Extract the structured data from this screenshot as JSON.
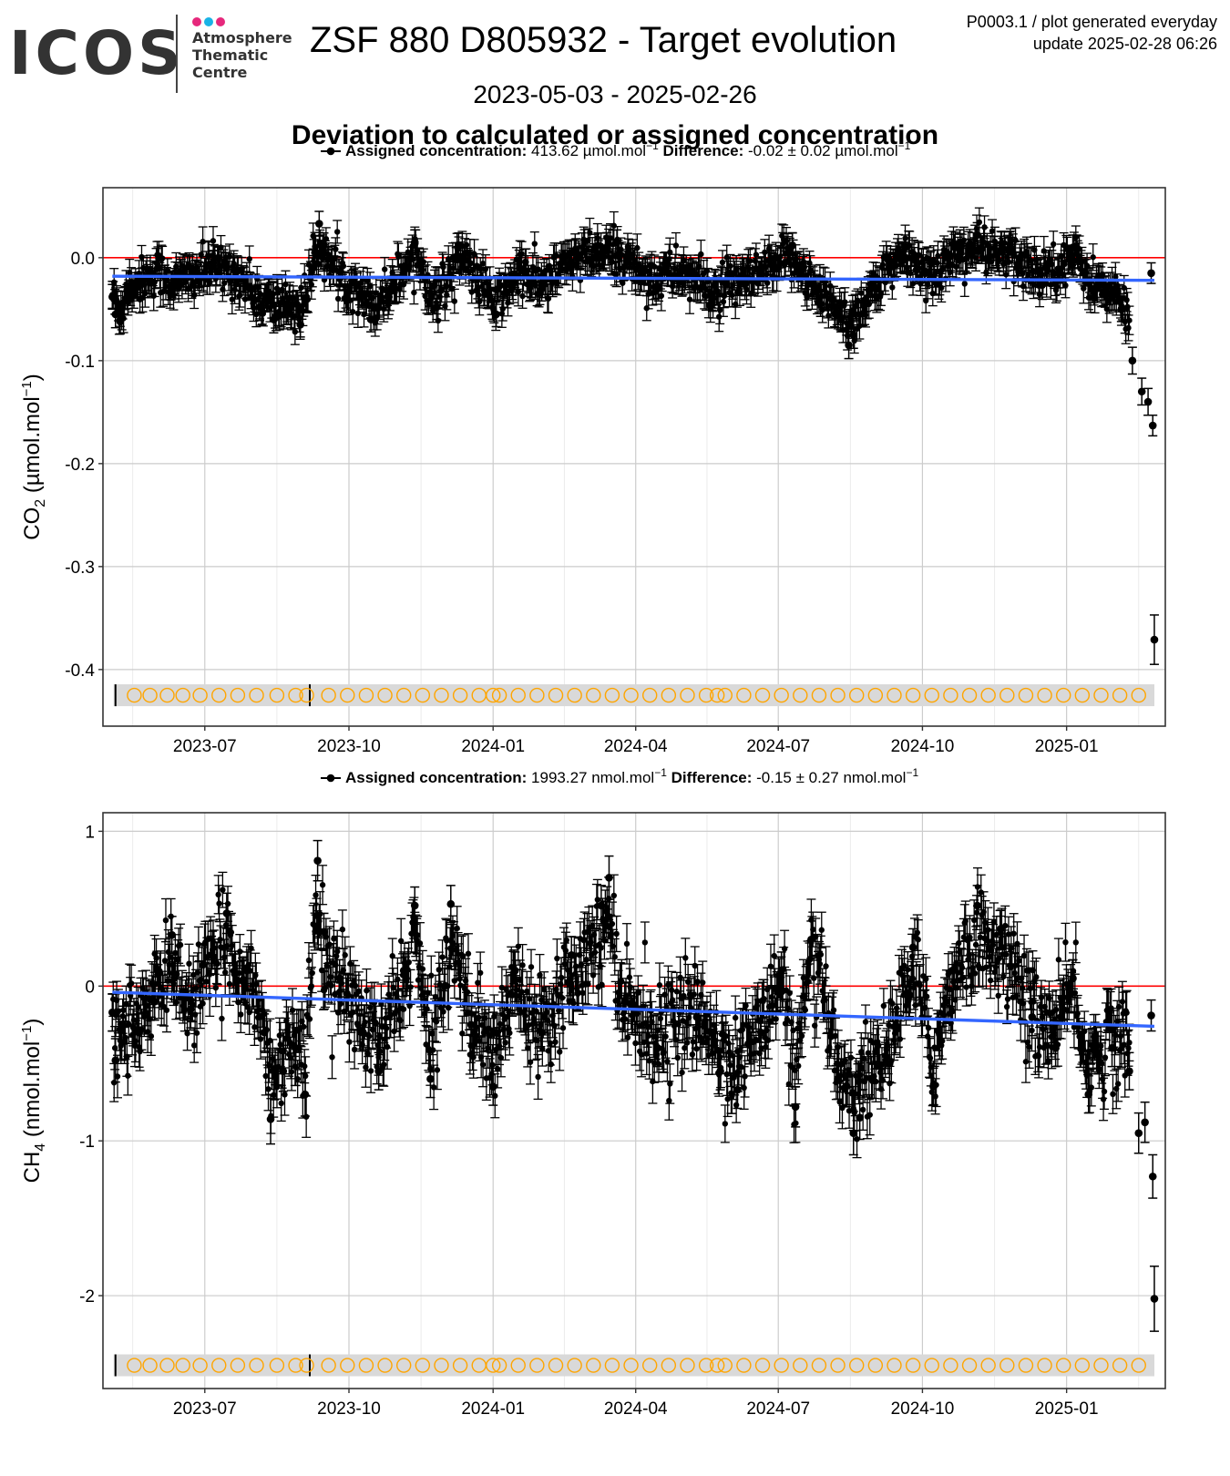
{
  "header": {
    "logo_text": "ICOS",
    "logo_subtitle": [
      "Atmosphere",
      "Thematic",
      "Centre"
    ],
    "logo_dot_colors": [
      "#e6287c",
      "#1ab3e6",
      "#e6287c"
    ],
    "title": "ZSF 880 D805932 - Target evolution",
    "meta_line1": "P0003.1 / plot generated everyday",
    "meta_line2": "update  2025-02-28 06:26",
    "date_range": "2023-05-03 - 2025-02-26",
    "section_title": "Deviation to calculated or assigned concentration"
  },
  "colors": {
    "points": "#000000",
    "zero_line": "#ff0000",
    "trend_line": "#3366ff",
    "marker_circles": "#ffa500",
    "marker_band": "#d9d9d9",
    "panel_border": "#333333",
    "grid_major": "#cccccc",
    "grid_minor": "#ebebeb"
  },
  "chart_data": [
    {
      "type": "scatter",
      "gas": "CO2",
      "legend": {
        "assigned_label": "Assigned concentration:",
        "assigned_value": "413.62 µmol.mol",
        "difference_label": "Difference:",
        "difference_value": "-0.02 ± 0.02 µmol.mol",
        "unit_exponent": "−1"
      },
      "ylabel_main": "CO",
      "ylabel_sub": "2",
      "ylabel_unit": " (µmol.mol",
      "ylabel_exp": "−1",
      "ylabel_close": ")",
      "xlim": [
        "2023-04-27",
        "2025-03-05"
      ],
      "ylim": [
        -0.455,
        0.068
      ],
      "yticks": [
        0.0,
        -0.1,
        -0.2,
        -0.3,
        -0.4
      ],
      "ytick_labels": [
        "0.0",
        "-0.1",
        "-0.2",
        "-0.3",
        "-0.4"
      ],
      "xticks": [
        "2023-07-01",
        "2023-10-01",
        "2024-01-01",
        "2024-04-01",
        "2024-07-01",
        "2024-10-01",
        "2025-01-01"
      ],
      "xtick_labels": [
        "2023-07",
        "2023-10",
        "2024-01",
        "2024-04",
        "2024-07",
        "2024-10",
        "2025-01"
      ],
      "reference_y": 0,
      "trend": {
        "x": [
          "2023-05-03",
          "2025-02-26"
        ],
        "y": [
          -0.018,
          -0.022
        ]
      },
      "marker_band_y": -0.425,
      "points": [
        {
          "x": "2023-05-03",
          "y": -0.038,
          "err": 0.012
        },
        {
          "x": "2023-05-05",
          "y": -0.055,
          "err": 0.013
        },
        {
          "x": "2023-05-08",
          "y": -0.062,
          "err": 0.012
        },
        {
          "x": "2023-05-14",
          "y": -0.03,
          "err": 0.012
        },
        {
          "x": "2023-05-22",
          "y": -0.022,
          "err": 0.012
        },
        {
          "x": "2023-06-01",
          "y": -0.01,
          "err": 0.012
        },
        {
          "x": "2023-06-12",
          "y": -0.028,
          "err": 0.012
        },
        {
          "x": "2023-06-25",
          "y": -0.015,
          "err": 0.012
        },
        {
          "x": "2023-07-06",
          "y": -0.005,
          "err": 0.012
        },
        {
          "x": "2023-07-20",
          "y": -0.012,
          "err": 0.012
        },
        {
          "x": "2023-08-05",
          "y": -0.048,
          "err": 0.013
        },
        {
          "x": "2023-08-14",
          "y": -0.06,
          "err": 0.013
        },
        {
          "x": "2023-08-22",
          "y": -0.052,
          "err": 0.013
        },
        {
          "x": "2023-08-31",
          "y": -0.065,
          "err": 0.012
        },
        {
          "x": "2023-09-08",
          "y": -0.01,
          "err": 0.012
        },
        {
          "x": "2023-09-12",
          "y": 0.033,
          "err": 0.012
        },
        {
          "x": "2023-09-15",
          "y": 0.012,
          "err": 0.012
        },
        {
          "x": "2023-09-25",
          "y": -0.02,
          "err": 0.012
        },
        {
          "x": "2023-10-10",
          "y": -0.035,
          "err": 0.012
        },
        {
          "x": "2023-10-15",
          "y": -0.06,
          "err": 0.012
        },
        {
          "x": "2023-10-28",
          "y": -0.03,
          "err": 0.012
        },
        {
          "x": "2023-11-12",
          "y": 0.015,
          "err": 0.012
        },
        {
          "x": "2023-11-26",
          "y": -0.048,
          "err": 0.012
        },
        {
          "x": "2023-12-10",
          "y": 0.012,
          "err": 0.012
        },
        {
          "x": "2023-12-22",
          "y": -0.02,
          "err": 0.012
        },
        {
          "x": "2024-01-03",
          "y": -0.055,
          "err": 0.012
        },
        {
          "x": "2024-01-18",
          "y": -0.01,
          "err": 0.012
        },
        {
          "x": "2024-02-01",
          "y": -0.03,
          "err": 0.012
        },
        {
          "x": "2024-02-20",
          "y": 0.005,
          "err": 0.012
        },
        {
          "x": "2024-03-08",
          "y": 0.012,
          "err": 0.012
        },
        {
          "x": "2024-03-20",
          "y": 0.015,
          "err": 0.012
        },
        {
          "x": "2024-04-10",
          "y": -0.02,
          "err": 0.012
        },
        {
          "x": "2024-05-01",
          "y": -0.01,
          "err": 0.012
        },
        {
          "x": "2024-05-20",
          "y": -0.04,
          "err": 0.012
        },
        {
          "x": "2024-06-10",
          "y": -0.025,
          "err": 0.012
        },
        {
          "x": "2024-06-28",
          "y": -0.008,
          "err": 0.012
        },
        {
          "x": "2024-07-10",
          "y": 0.012,
          "err": 0.012
        },
        {
          "x": "2024-07-28",
          "y": -0.045,
          "err": 0.012
        },
        {
          "x": "2024-08-10",
          "y": -0.06,
          "err": 0.012
        },
        {
          "x": "2024-08-15",
          "y": -0.085,
          "err": 0.013
        },
        {
          "x": "2024-08-18",
          "y": -0.075,
          "err": 0.013
        },
        {
          "x": "2024-09-01",
          "y": -0.03,
          "err": 0.012
        },
        {
          "x": "2024-09-20",
          "y": 0.01,
          "err": 0.012
        },
        {
          "x": "2024-10-05",
          "y": -0.015,
          "err": 0.012
        },
        {
          "x": "2024-10-25",
          "y": 0.015,
          "err": 0.012
        },
        {
          "x": "2024-11-05",
          "y": 0.022,
          "err": 0.012
        },
        {
          "x": "2024-11-25",
          "y": 0.008,
          "err": 0.012
        },
        {
          "x": "2024-12-15",
          "y": -0.012,
          "err": 0.012
        },
        {
          "x": "2025-01-05",
          "y": 0.01,
          "err": 0.012
        },
        {
          "x": "2025-01-20",
          "y": -0.03,
          "err": 0.012
        },
        {
          "x": "2025-02-05",
          "y": -0.05,
          "err": 0.012
        },
        {
          "x": "2025-02-12",
          "y": -0.1,
          "err": 0.013
        },
        {
          "x": "2025-02-18",
          "y": -0.13,
          "err": 0.013
        },
        {
          "x": "2025-02-22",
          "y": -0.14,
          "err": 0.013
        },
        {
          "x": "2025-02-24",
          "y": -0.015,
          "err": 0.01
        },
        {
          "x": "2025-02-25",
          "y": -0.163,
          "err": 0.01
        },
        {
          "x": "2025-02-26",
          "y": -0.371,
          "err": 0.024
        }
      ],
      "markers": [
        "2023-05-17",
        "2023-05-27",
        "2023-06-07",
        "2023-06-17",
        "2023-06-28",
        "2023-07-10",
        "2023-07-22",
        "2023-08-03",
        "2023-08-16",
        "2023-08-28",
        "2023-09-04",
        "2023-09-18",
        "2023-09-30",
        "2023-10-12",
        "2023-10-24",
        "2023-11-05",
        "2023-11-17",
        "2023-11-29",
        "2023-12-11",
        "2023-12-23",
        "2024-01-01",
        "2024-01-05",
        "2024-01-17",
        "2024-01-29",
        "2024-02-10",
        "2024-02-22",
        "2024-03-05",
        "2024-03-17",
        "2024-03-29",
        "2024-04-10",
        "2024-04-22",
        "2024-05-04",
        "2024-05-16",
        "2024-05-23",
        "2024-05-28",
        "2024-06-09",
        "2024-06-21",
        "2024-07-03",
        "2024-07-15",
        "2024-07-27",
        "2024-08-08",
        "2024-08-20",
        "2024-09-01",
        "2024-09-13",
        "2024-09-25",
        "2024-10-07",
        "2024-10-19",
        "2024-10-31",
        "2024-11-12",
        "2024-11-24",
        "2024-12-06",
        "2024-12-18",
        "2024-12-30",
        "2025-01-11",
        "2025-01-23",
        "2025-02-04",
        "2025-02-16"
      ],
      "event_marks": [
        "2023-05-05",
        "2023-09-06"
      ]
    },
    {
      "type": "scatter",
      "gas": "CH4",
      "legend": {
        "assigned_label": "Assigned concentration:",
        "assigned_value": "1993.27 nmol.mol",
        "difference_label": "Difference:",
        "difference_value": "-0.15 ± 0.27 nmol.mol",
        "unit_exponent": "−1"
      },
      "ylabel_main": "CH",
      "ylabel_sub": "4",
      "ylabel_unit": " (nmol.mol",
      "ylabel_exp": "−1",
      "ylabel_close": ")",
      "xlim": [
        "2023-04-27",
        "2025-03-05"
      ],
      "ylim": [
        -2.6,
        1.12
      ],
      "yticks": [
        1,
        0,
        -1,
        -2
      ],
      "ytick_labels": [
        "1",
        "0",
        "-1",
        "-2"
      ],
      "xticks": [
        "2023-07-01",
        "2023-10-01",
        "2024-01-01",
        "2024-04-01",
        "2024-07-01",
        "2024-10-01",
        "2025-01-01"
      ],
      "xtick_labels": [
        "2023-07",
        "2023-10",
        "2024-01",
        "2024-04",
        "2024-07",
        "2024-10",
        "2025-01"
      ],
      "reference_y": 0,
      "trend": {
        "x": [
          "2023-05-03",
          "2025-02-26"
        ],
        "y": [
          -0.04,
          -0.26
        ]
      },
      "marker_band_y": -2.45,
      "points": [
        {
          "x": "2023-05-03",
          "y": -0.17,
          "err": 0.12
        },
        {
          "x": "2023-05-05",
          "y": -0.48,
          "err": 0.14
        },
        {
          "x": "2023-05-10",
          "y": -0.25,
          "err": 0.12
        },
        {
          "x": "2023-05-20",
          "y": -0.3,
          "err": 0.12
        },
        {
          "x": "2023-05-30",
          "y": -0.1,
          "err": 0.12
        },
        {
          "x": "2023-06-10",
          "y": 0.33,
          "err": 0.12
        },
        {
          "x": "2023-06-22",
          "y": -0.15,
          "err": 0.12
        },
        {
          "x": "2023-07-05",
          "y": 0.2,
          "err": 0.12
        },
        {
          "x": "2023-07-15",
          "y": 0.47,
          "err": 0.13
        },
        {
          "x": "2023-07-28",
          "y": 0.1,
          "err": 0.12
        },
        {
          "x": "2023-08-08",
          "y": -0.3,
          "err": 0.12
        },
        {
          "x": "2023-08-12",
          "y": -0.86,
          "err": 0.16
        },
        {
          "x": "2023-08-20",
          "y": -0.55,
          "err": 0.13
        },
        {
          "x": "2023-08-28",
          "y": -0.4,
          "err": 0.13
        },
        {
          "x": "2023-09-03",
          "y": -0.7,
          "err": 0.14
        },
        {
          "x": "2023-09-11",
          "y": 0.81,
          "err": 0.13
        },
        {
          "x": "2023-09-15",
          "y": 0.35,
          "err": 0.12
        },
        {
          "x": "2023-09-25",
          "y": 0.05,
          "err": 0.12
        },
        {
          "x": "2023-10-10",
          "y": -0.3,
          "err": 0.12
        },
        {
          "x": "2023-10-20",
          "y": -0.55,
          "err": 0.12
        },
        {
          "x": "2023-11-05",
          "y": 0.1,
          "err": 0.12
        },
        {
          "x": "2023-11-12",
          "y": 0.52,
          "err": 0.12
        },
        {
          "x": "2023-11-22",
          "y": -0.6,
          "err": 0.12
        },
        {
          "x": "2023-12-05",
          "y": 0.53,
          "err": 0.12
        },
        {
          "x": "2023-12-18",
          "y": -0.25,
          "err": 0.12
        },
        {
          "x": "2024-01-01",
          "y": -0.65,
          "err": 0.12
        },
        {
          "x": "2024-01-15",
          "y": 0.1,
          "err": 0.12
        },
        {
          "x": "2024-02-01",
          "y": -0.3,
          "err": 0.12
        },
        {
          "x": "2024-02-20",
          "y": 0.2,
          "err": 0.12
        },
        {
          "x": "2024-03-10",
          "y": 0.52,
          "err": 0.13
        },
        {
          "x": "2024-03-15",
          "y": 0.7,
          "err": 0.14
        },
        {
          "x": "2024-03-25",
          "y": -0.1,
          "err": 0.12
        },
        {
          "x": "2024-04-15",
          "y": -0.4,
          "err": 0.12
        },
        {
          "x": "2024-05-10",
          "y": -0.2,
          "err": 0.12
        },
        {
          "x": "2024-05-25",
          "y": -0.55,
          "err": 0.12
        },
        {
          "x": "2024-06-05",
          "y": -0.67,
          "err": 0.12
        },
        {
          "x": "2024-06-20",
          "y": -0.3,
          "err": 0.12
        },
        {
          "x": "2024-07-03",
          "y": 0.1,
          "err": 0.12
        },
        {
          "x": "2024-07-12",
          "y": -0.78,
          "err": 0.13
        },
        {
          "x": "2024-07-22",
          "y": 0.3,
          "err": 0.12
        },
        {
          "x": "2024-08-08",
          "y": -0.6,
          "err": 0.13
        },
        {
          "x": "2024-08-18",
          "y": -0.95,
          "err": 0.14
        },
        {
          "x": "2024-08-22",
          "y": -0.85,
          "err": 0.14
        },
        {
          "x": "2024-09-10",
          "y": -0.5,
          "err": 0.12
        },
        {
          "x": "2024-09-25",
          "y": 0.25,
          "err": 0.12
        },
        {
          "x": "2024-10-08",
          "y": -0.65,
          "err": 0.12
        },
        {
          "x": "2024-10-20",
          "y": 0.1,
          "err": 0.12
        },
        {
          "x": "2024-11-05",
          "y": 0.52,
          "err": 0.13
        },
        {
          "x": "2024-11-20",
          "y": 0.37,
          "err": 0.12
        },
        {
          "x": "2024-12-10",
          "y": -0.2,
          "err": 0.12
        },
        {
          "x": "2024-12-25",
          "y": -0.4,
          "err": 0.12
        },
        {
          "x": "2025-01-05",
          "y": 0.05,
          "err": 0.12
        },
        {
          "x": "2025-01-15",
          "y": -0.7,
          "err": 0.12
        },
        {
          "x": "2025-01-30",
          "y": -0.4,
          "err": 0.12
        },
        {
          "x": "2025-02-10",
          "y": -0.55,
          "err": 0.12
        },
        {
          "x": "2025-02-16",
          "y": -0.95,
          "err": 0.13
        },
        {
          "x": "2025-02-20",
          "y": -0.88,
          "err": 0.13
        },
        {
          "x": "2025-02-24",
          "y": -0.19,
          "err": 0.1
        },
        {
          "x": "2025-02-25",
          "y": -1.23,
          "err": 0.14
        },
        {
          "x": "2025-02-26",
          "y": -2.02,
          "err": 0.21
        }
      ],
      "markers": [
        "2023-05-17",
        "2023-05-27",
        "2023-06-07",
        "2023-06-17",
        "2023-06-28",
        "2023-07-10",
        "2023-07-22",
        "2023-08-03",
        "2023-08-16",
        "2023-08-28",
        "2023-09-04",
        "2023-09-18",
        "2023-09-30",
        "2023-10-12",
        "2023-10-24",
        "2023-11-05",
        "2023-11-17",
        "2023-11-29",
        "2023-12-11",
        "2023-12-23",
        "2024-01-01",
        "2024-01-05",
        "2024-01-17",
        "2024-01-29",
        "2024-02-10",
        "2024-02-22",
        "2024-03-05",
        "2024-03-17",
        "2024-03-29",
        "2024-04-10",
        "2024-04-22",
        "2024-05-04",
        "2024-05-16",
        "2024-05-23",
        "2024-05-28",
        "2024-06-09",
        "2024-06-21",
        "2024-07-03",
        "2024-07-15",
        "2024-07-27",
        "2024-08-08",
        "2024-08-20",
        "2024-09-01",
        "2024-09-13",
        "2024-09-25",
        "2024-10-07",
        "2024-10-19",
        "2024-10-31",
        "2024-11-12",
        "2024-11-24",
        "2024-12-06",
        "2024-12-18",
        "2024-12-30",
        "2025-01-11",
        "2025-01-23",
        "2025-02-04",
        "2025-02-16"
      ],
      "event_marks": [
        "2023-05-05",
        "2023-09-06"
      ]
    }
  ]
}
